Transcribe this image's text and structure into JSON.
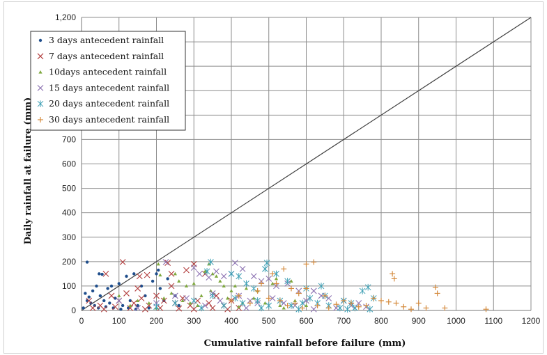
{
  "chart_data": {
    "type": "scatter",
    "xlabel": "Cumulative rainfall before failure (mm)",
    "ylabel": "Daily rainfall at failure (mm)",
    "xlim": [
      0,
      1200
    ],
    "ylim": [
      0,
      1200
    ],
    "x_ticks": [
      "0",
      "100",
      "200",
      "300",
      "400",
      "500",
      "600",
      "700",
      "800",
      "900",
      "1000",
      "1100",
      "1200"
    ],
    "y_ticks": [
      "0",
      "100",
      "200",
      "300",
      "400",
      "500",
      "600",
      "700",
      "800",
      "900",
      "1,000",
      "1,100",
      "1,200"
    ],
    "grid": true,
    "legend_position": "top-left",
    "reference_line": {
      "x": [
        0,
        1200
      ],
      "y": [
        0,
        1200
      ],
      "color": "#404040"
    },
    "series": [
      {
        "name": "3 days antecedent rainfall",
        "marker": "dot",
        "color": "#1f4e8c",
        "points": [
          [
            15,
            198
          ],
          [
            47,
            150
          ],
          [
            55,
            148
          ],
          [
            80,
            100
          ],
          [
            100,
            110
          ],
          [
            120,
            140
          ],
          [
            140,
            150
          ],
          [
            160,
            100
          ],
          [
            10,
            70
          ],
          [
            20,
            55
          ],
          [
            30,
            80
          ],
          [
            50,
            60
          ],
          [
            60,
            40
          ],
          [
            75,
            30
          ],
          [
            90,
            50
          ],
          [
            110,
            20
          ],
          [
            130,
            40
          ],
          [
            150,
            20
          ],
          [
            170,
            60
          ],
          [
            200,
            150
          ],
          [
            205,
            165
          ],
          [
            210,
            90
          ],
          [
            220,
            40
          ],
          [
            35,
            20
          ],
          [
            5,
            10
          ],
          [
            25,
            30
          ],
          [
            45,
            10
          ],
          [
            65,
            15
          ],
          [
            85,
            10
          ],
          [
            105,
            5
          ],
          [
            125,
            10
          ],
          [
            145,
            5
          ],
          [
            40,
            100
          ],
          [
            70,
            90
          ],
          [
            190,
            120
          ],
          [
            180,
            10
          ],
          [
            230,
            130
          ],
          [
            250,
            60
          ],
          [
            260,
            20
          ],
          [
            15,
            40
          ]
        ]
      },
      {
        "name": "7 days antecedent rainfall",
        "marker": "x",
        "color": "#b03a3a",
        "points": [
          [
            110,
            198
          ],
          [
            65,
            150
          ],
          [
            155,
            140
          ],
          [
            175,
            145
          ],
          [
            230,
            195
          ],
          [
            240,
            150
          ],
          [
            280,
            165
          ],
          [
            300,
            190
          ],
          [
            330,
            150
          ],
          [
            20,
            40
          ],
          [
            50,
            20
          ],
          [
            80,
            60
          ],
          [
            100,
            40
          ],
          [
            120,
            70
          ],
          [
            140,
            30
          ],
          [
            160,
            50
          ],
          [
            180,
            20
          ],
          [
            200,
            60
          ],
          [
            220,
            40
          ],
          [
            250,
            30
          ],
          [
            270,
            50
          ],
          [
            290,
            20
          ],
          [
            310,
            40
          ],
          [
            340,
            30
          ],
          [
            360,
            60
          ],
          [
            380,
            20
          ],
          [
            400,
            40
          ],
          [
            420,
            10
          ],
          [
            30,
            10
          ],
          [
            60,
            5
          ],
          [
            90,
            15
          ],
          [
            130,
            10
          ],
          [
            170,
            5
          ],
          [
            210,
            10
          ],
          [
            260,
            8
          ],
          [
            300,
            5
          ],
          [
            350,
            10
          ],
          [
            390,
            5
          ],
          [
            150,
            90
          ],
          [
            240,
            100
          ]
        ]
      },
      {
        "name": "10days antecedent rainfall",
        "marker": "triangle",
        "color": "#7ea83d",
        "points": [
          [
            205,
            190
          ],
          [
            210,
            145
          ],
          [
            250,
            150
          ],
          [
            260,
            120
          ],
          [
            280,
            100
          ],
          [
            300,
            110
          ],
          [
            330,
            160
          ],
          [
            340,
            190
          ],
          [
            350,
            150
          ],
          [
            360,
            140
          ],
          [
            370,
            120
          ],
          [
            380,
            100
          ],
          [
            400,
            80
          ],
          [
            410,
            100
          ],
          [
            440,
            90
          ],
          [
            470,
            80
          ],
          [
            510,
            110
          ],
          [
            520,
            130
          ],
          [
            560,
            120
          ],
          [
            100,
            60
          ],
          [
            150,
            40
          ],
          [
            180,
            30
          ],
          [
            220,
            50
          ],
          [
            240,
            70
          ],
          [
            270,
            40
          ],
          [
            290,
            30
          ],
          [
            320,
            60
          ],
          [
            345,
            80
          ],
          [
            390,
            50
          ],
          [
            430,
            30
          ],
          [
            460,
            50
          ],
          [
            490,
            30
          ],
          [
            530,
            20
          ],
          [
            570,
            40
          ],
          [
            600,
            20
          ],
          [
            130,
            20
          ],
          [
            200,
            10
          ],
          [
            310,
            20
          ],
          [
            420,
            15
          ],
          [
            540,
            10
          ]
        ]
      },
      {
        "name": "15 days antecedent rainfall",
        "marker": "x",
        "color": "#8a6fb0",
        "points": [
          [
            225,
            198
          ],
          [
            300,
            175
          ],
          [
            315,
            150
          ],
          [
            340,
            135
          ],
          [
            360,
            160
          ],
          [
            380,
            140
          ],
          [
            410,
            195
          ],
          [
            400,
            150
          ],
          [
            430,
            170
          ],
          [
            460,
            140
          ],
          [
            480,
            120
          ],
          [
            500,
            130
          ],
          [
            520,
            100
          ],
          [
            550,
            110
          ],
          [
            580,
            80
          ],
          [
            620,
            80
          ],
          [
            640,
            60
          ],
          [
            660,
            50
          ],
          [
            700,
            40
          ],
          [
            720,
            20
          ],
          [
            100,
            40
          ],
          [
            200,
            30
          ],
          [
            250,
            60
          ],
          [
            280,
            50
          ],
          [
            350,
            70
          ],
          [
            370,
            40
          ],
          [
            420,
            60
          ],
          [
            450,
            40
          ],
          [
            470,
            30
          ],
          [
            510,
            50
          ],
          [
            540,
            30
          ],
          [
            570,
            20
          ],
          [
            600,
            40
          ],
          [
            680,
            10
          ],
          [
            740,
            30
          ],
          [
            760,
            15
          ],
          [
            150,
            10
          ],
          [
            330,
            20
          ],
          [
            440,
            10
          ],
          [
            620,
            5
          ]
        ]
      },
      {
        "name": "20 days antecedent rainfall",
        "marker": "star",
        "color": "#3c9fb4",
        "points": [
          [
            345,
            198
          ],
          [
            335,
            160
          ],
          [
            400,
            150
          ],
          [
            420,
            140
          ],
          [
            440,
            110
          ],
          [
            460,
            90
          ],
          [
            490,
            170
          ],
          [
            495,
            195
          ],
          [
            520,
            150
          ],
          [
            550,
            120
          ],
          [
            600,
            90
          ],
          [
            640,
            100
          ],
          [
            650,
            60
          ],
          [
            700,
            40
          ],
          [
            720,
            30
          ],
          [
            750,
            80
          ],
          [
            765,
            95
          ],
          [
            780,
            50
          ],
          [
            250,
            30
          ],
          [
            300,
            40
          ],
          [
            350,
            60
          ],
          [
            380,
            20
          ],
          [
            410,
            50
          ],
          [
            430,
            30
          ],
          [
            470,
            40
          ],
          [
            500,
            20
          ],
          [
            530,
            40
          ],
          [
            560,
            20
          ],
          [
            590,
            30
          ],
          [
            610,
            50
          ],
          [
            630,
            30
          ],
          [
            660,
            20
          ],
          [
            690,
            10
          ],
          [
            710,
            5
          ],
          [
            730,
            10
          ],
          [
            770,
            5
          ],
          [
            200,
            15
          ],
          [
            320,
            10
          ],
          [
            480,
            10
          ],
          [
            580,
            5
          ]
        ]
      },
      {
        "name": "30 days antecedent rainfall",
        "marker": "plus",
        "color": "#d48a3c",
        "points": [
          [
            620,
            198
          ],
          [
            600,
            190
          ],
          [
            540,
            170
          ],
          [
            510,
            150
          ],
          [
            480,
            110
          ],
          [
            520,
            110
          ],
          [
            560,
            90
          ],
          [
            580,
            70
          ],
          [
            600,
            90
          ],
          [
            650,
            60
          ],
          [
            700,
            40
          ],
          [
            720,
            30
          ],
          [
            780,
            50
          ],
          [
            800,
            40
          ],
          [
            820,
            35
          ],
          [
            830,
            150
          ],
          [
            835,
            130
          ],
          [
            840,
            30
          ],
          [
            900,
            30
          ],
          [
            945,
            95
          ],
          [
            950,
            70
          ],
          [
            970,
            10
          ],
          [
            1080,
            5
          ],
          [
            400,
            40
          ],
          [
            420,
            60
          ],
          [
            450,
            30
          ],
          [
            470,
            80
          ],
          [
            500,
            50
          ],
          [
            530,
            40
          ],
          [
            550,
            20
          ],
          [
            570,
            30
          ],
          [
            590,
            10
          ],
          [
            630,
            20
          ],
          [
            660,
            10
          ],
          [
            680,
            25
          ],
          [
            740,
            15
          ],
          [
            760,
            20
          ],
          [
            860,
            15
          ],
          [
            880,
            5
          ],
          [
            920,
            10
          ]
        ]
      }
    ]
  }
}
